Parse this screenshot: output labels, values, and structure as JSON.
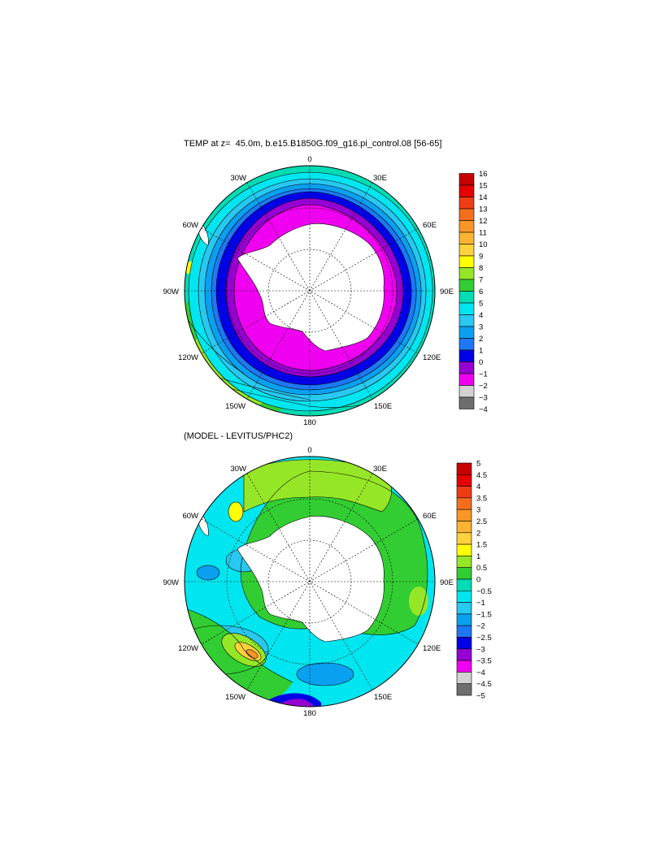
{
  "panels": [
    {
      "title": "TEMP at z=  45.0m, b.e15.B1850G.f09_g16.pi_control.08 [56-65]",
      "longitude_labels": [
        "0",
        "30E",
        "60E",
        "90E",
        "120E",
        "150E",
        "180",
        "150W",
        "120W",
        "90W",
        "60W",
        "30W"
      ],
      "colorbar": {
        "labels": [
          "16",
          "15",
          "14",
          "13",
          "12",
          "11",
          "10",
          "9",
          "8",
          "7",
          "6",
          "5",
          "4",
          "3",
          "2",
          "1",
          "0",
          "−1",
          "−2",
          "−3",
          "−4"
        ],
        "colors": [
          "#c80000",
          "#e60000",
          "#f03c14",
          "#f56e1e",
          "#f89628",
          "#fbb432",
          "#fdd23c",
          "#ffff00",
          "#96e628",
          "#32cd32",
          "#00dcb4",
          "#00e6f0",
          "#28c8f0",
          "#0aa0f0",
          "#1e78f5",
          "#0000e6",
          "#9600d2",
          "#f000f0",
          "#d2d2d2",
          "#6e6e6e"
        ]
      }
    },
    {
      "title": "(MODEL - LEVITUS/PHC2)",
      "longitude_labels": [
        "0",
        "30E",
        "60E",
        "90E",
        "120E",
        "150E",
        "180",
        "150W",
        "120W",
        "90W",
        "60W",
        "30W"
      ],
      "colorbar": {
        "labels": [
          "5",
          "4.5",
          "4",
          "3.5",
          "3",
          "2.5",
          "2",
          "1.5",
          "1",
          "0.5",
          "0",
          "−0.5",
          "−1",
          "−1.5",
          "−2",
          "−2.5",
          "−3",
          "−3.5",
          "−4",
          "−4.5",
          "−5"
        ],
        "colors": [
          "#c80000",
          "#e60000",
          "#f03c14",
          "#f56e1e",
          "#f89628",
          "#fbb432",
          "#fdd23c",
          "#ffff00",
          "#96e628",
          "#32cd32",
          "#00dcb4",
          "#00e6f0",
          "#28c8f0",
          "#0aa0f0",
          "#1e78f5",
          "#0000e6",
          "#9600d2",
          "#f000f0",
          "#d2d2d2",
          "#6e6e6e"
        ]
      }
    }
  ]
}
